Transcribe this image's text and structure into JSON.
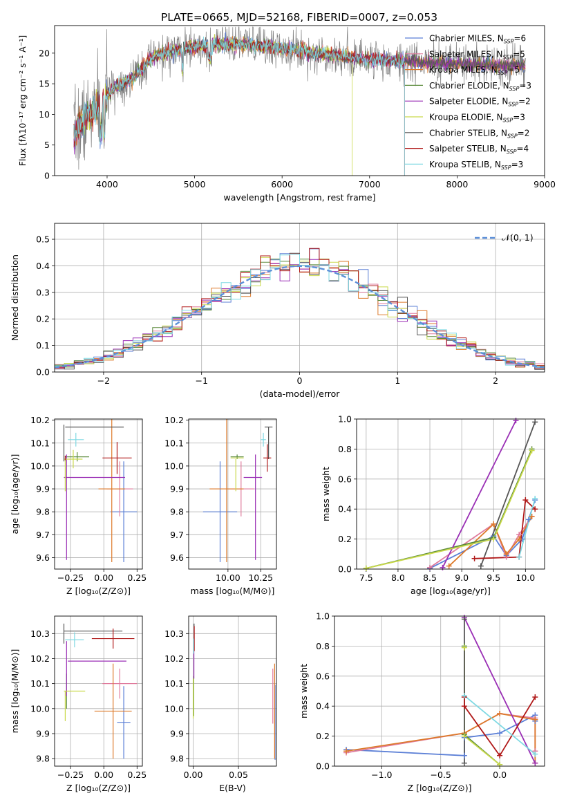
{
  "figure_title": "PLATE=0665, MJD=52168, FIBERID=0007, z=0.053",
  "colors": {
    "Chabrier MILES": "#5b7fd6",
    "Salpeter MILES": "#e07b9d",
    "Kroupa MILES": "#dd7a2b",
    "Chabrier ELODIE": "#5a8a3a",
    "Salpeter ELODIE": "#9a2fb5",
    "Kroupa ELODIE": "#c9d94a",
    "Chabrier STELIB": "#555555",
    "Salpeter STELIB": "#b01818",
    "Kroupa STELIB": "#7fd9e3",
    "observed": "#7f7f7f",
    "normal_curve": "#5b8fd8",
    "grid": "#b0b0b0"
  },
  "chart_data": [
    {
      "id": "spectrum",
      "type": "line",
      "title": "PLATE=0665, MJD=52168, FIBERID=0007, z=0.053",
      "xlabel": "wavelength [Angstrom, rest frame]",
      "ylabel": "Flux [fλ10⁻¹⁷ erg cm⁻² s⁻¹ A⁻¹]",
      "xlim": [
        3400,
        9000
      ],
      "ylim": [
        0,
        24.5
      ],
      "xticks": [
        4000,
        5000,
        6000,
        7000,
        8000,
        9000
      ],
      "yticks": [
        0,
        5,
        10,
        15,
        20
      ],
      "continuum": {
        "x": [
          3620,
          3700,
          3800,
          3900,
          4000,
          4100,
          4200,
          4300,
          4400,
          4500,
          4600,
          4800,
          5000,
          5200,
          5400,
          5600,
          6000,
          6400,
          6800,
          7200,
          7600,
          8000,
          8400,
          8800
        ],
        "y": [
          6.5,
          8.5,
          10,
          11.5,
          13,
          14.5,
          15.3,
          16,
          17.5,
          19,
          19.8,
          20.5,
          21,
          21.3,
          21.5,
          21.4,
          20.8,
          20,
          19.3,
          18.8,
          18.5,
          18.2,
          18,
          18
        ]
      },
      "legend": [
        "Chabrier MILES, N_SSP=6",
        "Salpeter MILES, N_SSP=5",
        "Kroupa MILES, N_SSP=5",
        "Chabrier ELODIE, N_SSP=3",
        "Salpeter ELODIE, N_SSP=2",
        "Kroupa ELODIE, N_SSP=3",
        "Chabrier STELIB, N_SSP=2",
        "Salpeter STELIB, N_SSP=4",
        "Kroupa STELIB, N_SSP=3"
      ],
      "legend_location": "right"
    },
    {
      "id": "residuals",
      "type": "line",
      "xlabel": "(data-model)/error",
      "ylabel": "Normed distribution",
      "xlim": [
        -2.5,
        2.5
      ],
      "ylim": [
        0,
        0.56
      ],
      "xticks": [
        -2,
        -1,
        0,
        1,
        2
      ],
      "yticks": [
        0.0,
        0.1,
        0.2,
        0.3,
        0.4,
        0.5
      ],
      "legend": "𝒩(0, 1)",
      "legend_location": "top-right",
      "bin_width": 0.1
    },
    {
      "id": "age_vs_z",
      "type": "scatter",
      "xlabel": "Z [log₁₀(Z/Z⊙)]",
      "ylabel": "age  [log₁₀(age/yr)]",
      "xlim": [
        -0.37,
        0.29
      ],
      "ylim": [
        9.55,
        10.205
      ],
      "xticks": [
        -0.25,
        0.0,
        0.25
      ],
      "yticks": [
        9.6,
        9.7,
        9.8,
        9.9,
        10.0,
        10.1,
        10.2
      ],
      "points": [
        {
          "model": "Chabrier MILES",
          "x": 0.15,
          "y": 9.8,
          "xerr": 0.1,
          "yerr": 0.22
        },
        {
          "model": "Salpeter MILES",
          "x": 0.12,
          "y": 9.9,
          "xerr": 0.1,
          "yerr": 0.12
        },
        {
          "model": "Kroupa MILES",
          "x": 0.06,
          "y": 9.9,
          "xerr": 0.1,
          "yerr": 0.32
        },
        {
          "model": "Chabrier ELODIE",
          "x": -0.2,
          "y": 10.04,
          "xerr": 0.09,
          "yerr": 0.02
        },
        {
          "model": "Salpeter ELODIE",
          "x": -0.07,
          "y": 9.95,
          "xerr": 0.23,
          "yerr": 0.0
        },
        {
          "model": "Salpeter ELODIE",
          "x": -0.28,
          "y": 9.82,
          "xerr": 0.0,
          "yerr": 0.23
        },
        {
          "model": "Kroupa ELODIE",
          "x": -0.23,
          "y": 10.03,
          "xerr": 0.07,
          "yerr": 0.04
        },
        {
          "model": "Kroupa ELODIE",
          "x": -0.29,
          "y": 9.96,
          "xerr": 0.0,
          "yerr": 0.07
        },
        {
          "model": "Chabrier STELIB",
          "x": -0.07,
          "y": 10.17,
          "xerr": 0.22,
          "yerr": 0.0
        },
        {
          "model": "Chabrier STELIB",
          "x": -0.3,
          "y": 10.1,
          "xerr": 0.0,
          "yerr": 0.08
        },
        {
          "model": "Salpeter STELIB",
          "x": 0.1,
          "y": 10.035,
          "xerr": 0.11,
          "yerr": 0.07
        },
        {
          "model": "Salpeter STELIB",
          "x": -0.29,
          "y": 10.035,
          "xerr": 0.0,
          "yerr": 0.01
        },
        {
          "model": "Kroupa STELIB",
          "x": -0.21,
          "y": 10.115,
          "xerr": 0.06,
          "yerr": 0.03
        }
      ]
    },
    {
      "id": "age_vs_mass",
      "type": "scatter",
      "xlabel": "mass [log₁₀(M/M⊙)]",
      "xlim": [
        9.7,
        10.37
      ],
      "ylim": [
        9.55,
        10.205
      ],
      "xticks": [
        10.0,
        10.25
      ],
      "yticks": [
        9.6,
        9.7,
        9.8,
        9.9,
        10.0,
        10.1,
        10.2
      ],
      "points": [
        {
          "model": "Chabrier MILES",
          "x": 9.94,
          "y": 9.8,
          "xerr": 0.13,
          "yerr": 0.22
        },
        {
          "model": "Salpeter MILES",
          "x": 10.1,
          "y": 9.9,
          "xerr": 0.1,
          "yerr": 0.12
        },
        {
          "model": "Kroupa MILES",
          "x": 9.99,
          "y": 9.9,
          "xerr": 0.13,
          "yerr": 0.32
        },
        {
          "model": "Chabrier ELODIE",
          "x": 10.07,
          "y": 10.04,
          "xerr": 0.05,
          "yerr": 0.01
        },
        {
          "model": "Salpeter ELODIE",
          "x": 10.19,
          "y": 9.95,
          "xerr": 0.07,
          "yerr": 0.0
        },
        {
          "model": "Salpeter ELODIE",
          "x": 10.21,
          "y": 9.82,
          "xerr": 0.0,
          "yerr": 0.23
        },
        {
          "model": "Kroupa ELODIE",
          "x": 10.07,
          "y": 10.035,
          "xerr": 0.05,
          "yerr": 0.0
        },
        {
          "model": "Kroupa ELODIE",
          "x": 10.06,
          "y": 9.96,
          "xerr": 0.0,
          "yerr": 0.07
        },
        {
          "model": "Chabrier STELIB",
          "x": 10.31,
          "y": 10.17,
          "xerr": 0.03,
          "yerr": 0.0
        },
        {
          "model": "Chabrier STELIB",
          "x": 10.31,
          "y": 10.1,
          "xerr": 0.0,
          "yerr": 0.07
        },
        {
          "model": "Salpeter STELIB",
          "x": 10.3,
          "y": 10.035,
          "xerr": 0.03,
          "yerr": 0.06
        },
        {
          "model": "Kroupa STELIB",
          "x": 10.27,
          "y": 10.115,
          "xerr": 0.02,
          "yerr": 0.03
        }
      ]
    },
    {
      "id": "weight_vs_age",
      "type": "line",
      "xlabel": "age  [log₁₀(age/yr)]",
      "ylabel": "mass weight",
      "xlim": [
        7.35,
        10.3
      ],
      "ylim": [
        0,
        1.0
      ],
      "xticks": [
        7.5,
        8.0,
        8.5,
        9.0,
        9.5,
        10.0
      ],
      "yticks": [
        0.0,
        0.2,
        0.4,
        0.6,
        0.8,
        1.0
      ],
      "series": [
        {
          "model": "Chabrier MILES",
          "x": [
            8.5,
            9.5,
            9.7,
            9.95,
            10.05,
            10.15
          ],
          "y": [
            0.005,
            0.22,
            0.09,
            0.2,
            0.33,
            0.46
          ]
        },
        {
          "model": "Salpeter MILES",
          "x": [
            8.5,
            9.5,
            9.7,
            9.9,
            10.1
          ],
          "y": [
            0.01,
            0.3,
            0.08,
            0.23,
            0.35
          ]
        },
        {
          "model": "Kroupa MILES",
          "x": [
            8.8,
            9.5,
            9.7,
            9.9,
            10.1
          ],
          "y": [
            0.02,
            0.3,
            0.1,
            0.2,
            0.35
          ]
        },
        {
          "model": "Chabrier ELODIE",
          "x": [
            7.5,
            9.5,
            10.1
          ],
          "y": [
            0.005,
            0.21,
            0.8
          ]
        },
        {
          "model": "Salpeter ELODIE",
          "x": [
            8.7,
            9.85
          ],
          "y": [
            0.01,
            0.99
          ]
        },
        {
          "model": "Kroupa ELODIE",
          "x": [
            7.5,
            9.5,
            10.1
          ],
          "y": [
            0.005,
            0.2,
            0.79
          ]
        },
        {
          "model": "Chabrier STELIB",
          "x": [
            9.3,
            10.15
          ],
          "y": [
            0.02,
            0.98
          ]
        },
        {
          "model": "Salpeter STELIB",
          "x": [
            9.2,
            9.9,
            10.0,
            10.15
          ],
          "y": [
            0.07,
            0.08,
            0.46,
            0.4
          ]
        },
        {
          "model": "Kroupa STELIB",
          "x": [
            9.9,
            10.15
          ],
          "y": [
            0.08,
            0.47
          ]
        }
      ]
    },
    {
      "id": "mass_vs_z",
      "type": "scatter",
      "xlabel": "Z [log₁₀(Z/Z⊙)]",
      "ylabel": "mass [log₁₀(M/M⊙)]",
      "xlim": [
        -0.37,
        0.29
      ],
      "ylim": [
        9.77,
        10.37
      ],
      "xticks": [
        -0.25,
        0.0,
        0.25
      ],
      "yticks": [
        9.8,
        9.9,
        10.0,
        10.1,
        10.2,
        10.3
      ],
      "points": [
        {
          "model": "Chabrier MILES",
          "x": 0.15,
          "y": 9.945,
          "xerr": 0.05,
          "yerr": 0.145
        },
        {
          "model": "Salpeter MILES",
          "x": 0.12,
          "y": 10.1,
          "xerr": 0.13,
          "yerr": 0.06
        },
        {
          "model": "Kroupa MILES",
          "x": 0.07,
          "y": 9.99,
          "xerr": 0.14,
          "yerr": 0.19
        },
        {
          "model": "Chabrier ELODIE",
          "x": -0.28,
          "y": 10.07,
          "xerr": 0.0,
          "yerr": 0.07
        },
        {
          "model": "Salpeter ELODIE",
          "x": -0.05,
          "y": 10.19,
          "xerr": 0.22,
          "yerr": 0.0
        },
        {
          "model": "Salpeter ELODIE",
          "x": -0.28,
          "y": 10.16,
          "xerr": 0.0,
          "yerr": 0.11
        },
        {
          "model": "Kroupa ELODIE",
          "x": -0.22,
          "y": 10.07,
          "xerr": 0.08,
          "yerr": 0.0
        },
        {
          "model": "Kroupa ELODIE",
          "x": -0.29,
          "y": 10.01,
          "xerr": 0.0,
          "yerr": 0.06
        },
        {
          "model": "Chabrier STELIB",
          "x": -0.08,
          "y": 10.31,
          "xerr": 0.22,
          "yerr": 0.0
        },
        {
          "model": "Chabrier STELIB",
          "x": -0.3,
          "y": 10.3,
          "xerr": 0.0,
          "yerr": 0.04
        },
        {
          "model": "Salpeter STELIB",
          "x": 0.07,
          "y": 10.28,
          "xerr": 0.16,
          "yerr": 0.04
        },
        {
          "model": "Kroupa STELIB",
          "x": -0.22,
          "y": 10.275,
          "xerr": 0.07,
          "yerr": 0.03
        }
      ]
    },
    {
      "id": "mass_vs_ebv",
      "type": "scatter",
      "xlabel": "E(B-V)",
      "xlim": [
        -0.005,
        0.092
      ],
      "ylim": [
        9.77,
        10.37
      ],
      "xticks": [
        0.0,
        0.05
      ],
      "yticks": [
        9.8,
        9.9,
        10.0,
        10.1,
        10.2,
        10.3
      ],
      "points": [
        {
          "model": "Chabrier MILES",
          "x": 0.0905,
          "y": 9.945,
          "xerr": 0.0,
          "yerr": 0.15
        },
        {
          "model": "Salpeter MILES",
          "x": 0.088,
          "y": 10.05,
          "xerr": 0.0,
          "yerr": 0.11
        },
        {
          "model": "Kroupa MILES",
          "x": 0.09,
          "y": 9.99,
          "xerr": 0.0,
          "yerr": 0.19
        },
        {
          "model": "Chabrier ELODIE",
          "x": 0.0005,
          "y": 10.05,
          "xerr": 0.0,
          "yerr": 0.08
        },
        {
          "model": "Salpeter ELODIE",
          "x": 0.0008,
          "y": 10.19,
          "xerr": 0.0,
          "yerr": 0.07
        },
        {
          "model": "Kroupa ELODIE",
          "x": 0.0,
          "y": 10.04,
          "xerr": 0.0,
          "yerr": 0.08
        },
        {
          "model": "Chabrier STELIB",
          "x": 0.001,
          "y": 10.3,
          "xerr": 0.0,
          "yerr": 0.04
        },
        {
          "model": "Salpeter STELIB",
          "x": 0.0012,
          "y": 10.28,
          "xerr": 0.0,
          "yerr": 0.05
        },
        {
          "model": "Kroupa STELIB",
          "x": 0.0005,
          "y": 10.25,
          "xerr": 0.0,
          "yerr": 0.03
        }
      ]
    },
    {
      "id": "weight_vs_z",
      "type": "line",
      "xlabel": "Z [log₁₀(Z/Z⊙)]",
      "ylabel": "mass weight",
      "xlim": [
        -1.4,
        0.38
      ],
      "ylim": [
        0,
        1.0
      ],
      "xticks": [
        -1.0,
        -0.5,
        0.0
      ],
      "yticks": [
        0.0,
        0.2,
        0.4,
        0.6,
        0.8,
        1.0
      ],
      "series": [
        {
          "model": "Chabrier MILES",
          "x": [
            -1.3,
            -0.3,
            -0.3,
            0.0,
            0.3,
            0.3
          ],
          "y": [
            0.11,
            0.07,
            0.19,
            0.22,
            0.34,
            0.3
          ]
        },
        {
          "model": "Salpeter MILES",
          "x": [
            -1.3,
            -0.3,
            0.0,
            0.3,
            0.3
          ],
          "y": [
            0.09,
            0.22,
            0.35,
            0.32,
            0.1
          ]
        },
        {
          "model": "Kroupa MILES",
          "x": [
            -1.3,
            -0.3,
            0.0,
            0.3,
            0.3
          ],
          "y": [
            0.1,
            0.22,
            0.35,
            0.31,
            0.02
          ]
        },
        {
          "model": "Chabrier ELODIE",
          "x": [
            -0.3,
            -0.3,
            0.0
          ],
          "y": [
            0.8,
            0.21,
            0.01
          ]
        },
        {
          "model": "Salpeter ELODIE",
          "x": [
            -0.3,
            0.3
          ],
          "y": [
            0.99,
            0.02
          ]
        },
        {
          "model": "Kroupa ELODIE",
          "x": [
            -0.3,
            -0.3,
            0.0
          ],
          "y": [
            0.79,
            0.2,
            0.01
          ]
        },
        {
          "model": "Chabrier STELIB",
          "x": [
            -0.3,
            -0.3
          ],
          "y": [
            0.98,
            0.02
          ]
        },
        {
          "model": "Salpeter STELIB",
          "x": [
            -0.3,
            -0.3,
            0.0,
            0.3
          ],
          "y": [
            0.46,
            0.4,
            0.07,
            0.46
          ]
        },
        {
          "model": "Kroupa STELIB",
          "x": [
            -0.3,
            0.3
          ],
          "y": [
            0.47,
            0.08
          ]
        }
      ]
    }
  ]
}
